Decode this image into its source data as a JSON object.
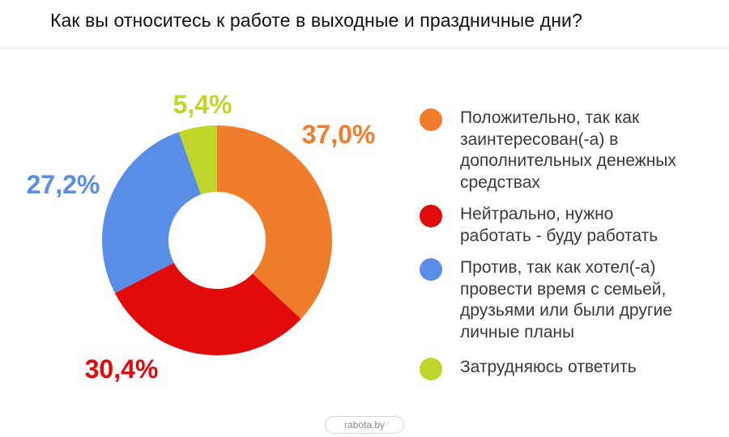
{
  "title": "Как вы относитесь к работе в выходные и праздничные дни?",
  "footer": "rabota.by",
  "colors": {
    "orange": "#f07d2c",
    "red": "#e10a0a",
    "blue": "#5a8ee6",
    "green": "#bfd52a"
  },
  "chart_data": {
    "type": "pie",
    "variant": "donut",
    "title": "Как вы относитесь к работе в выходные и праздничные дни?",
    "legend_position": "right",
    "slices": [
      {
        "label": "Положительно, так как заинтересован(-а) в дополнительных денежных средствах",
        "value": 37.0,
        "value_label": "37,0%",
        "color": "#f07d2c"
      },
      {
        "label": "Нейтрально, нужно работать - буду работать",
        "value": 30.4,
        "value_label": "30,4%",
        "color": "#e10a0a"
      },
      {
        "label": "Против, так как хотел(-а) провести время с семьей, друзьями или были другие личные планы",
        "value": 27.2,
        "value_label": "27,2%",
        "color": "#5a8ee6"
      },
      {
        "label": "Затрудняюсь ответить",
        "value": 5.4,
        "value_label": "5,4%",
        "color": "#bfd52a"
      }
    ]
  },
  "legend": [
    {
      "lines": [
        "Положительно, так как",
        "заинтересован(-а) в",
        "дополнительных денежных",
        "средствах"
      ],
      "color": "#f07d2c",
      "icon": "orange-dot"
    },
    {
      "lines": [
        "Нейтрально, нужно",
        "работать - буду работать"
      ],
      "color": "#e10a0a",
      "icon": "red-dot"
    },
    {
      "lines": [
        "Против, так как хотел(-а)",
        "провести время с семьей,",
        "друзьями или были другие",
        "личные планы"
      ],
      "color": "#5a8ee6",
      "icon": "blue-dot"
    },
    {
      "lines": [
        "Затрудняюсь ответить"
      ],
      "color": "#bfd52a",
      "icon": "green-dot"
    }
  ]
}
